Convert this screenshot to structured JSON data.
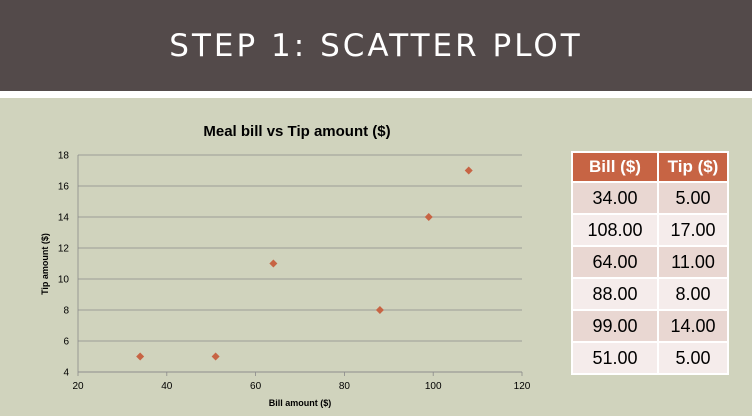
{
  "header": {
    "title": "STEP 1: SCATTER PLOT"
  },
  "colors": {
    "banner": "#534a4a",
    "accent": "#c76444",
    "panel": "#d0d3bd"
  },
  "chart_data": {
    "type": "scatter",
    "title": "Meal bill vs Tip amount ($)",
    "xlabel": "Bill amount ($)",
    "ylabel": "Tip amount ($)",
    "xlim": [
      20,
      120
    ],
    "ylim": [
      4,
      18
    ],
    "xticks": [
      20,
      40,
      60,
      80,
      100,
      120
    ],
    "yticks": [
      4,
      6,
      8,
      10,
      12,
      14,
      16,
      18
    ],
    "grid": "horizontal",
    "x": [
      34,
      108,
      64,
      88,
      99,
      51
    ],
    "y": [
      5,
      17,
      11,
      8,
      14,
      5
    ],
    "marker_color": "#c76444"
  },
  "table": {
    "headers": [
      "Bill ($)",
      "Tip ($)"
    ],
    "rows": [
      [
        "34.00",
        "5.00"
      ],
      [
        "108.00",
        "17.00"
      ],
      [
        "64.00",
        "11.00"
      ],
      [
        "88.00",
        "8.00"
      ],
      [
        "99.00",
        "14.00"
      ],
      [
        "51.00",
        "5.00"
      ]
    ]
  }
}
